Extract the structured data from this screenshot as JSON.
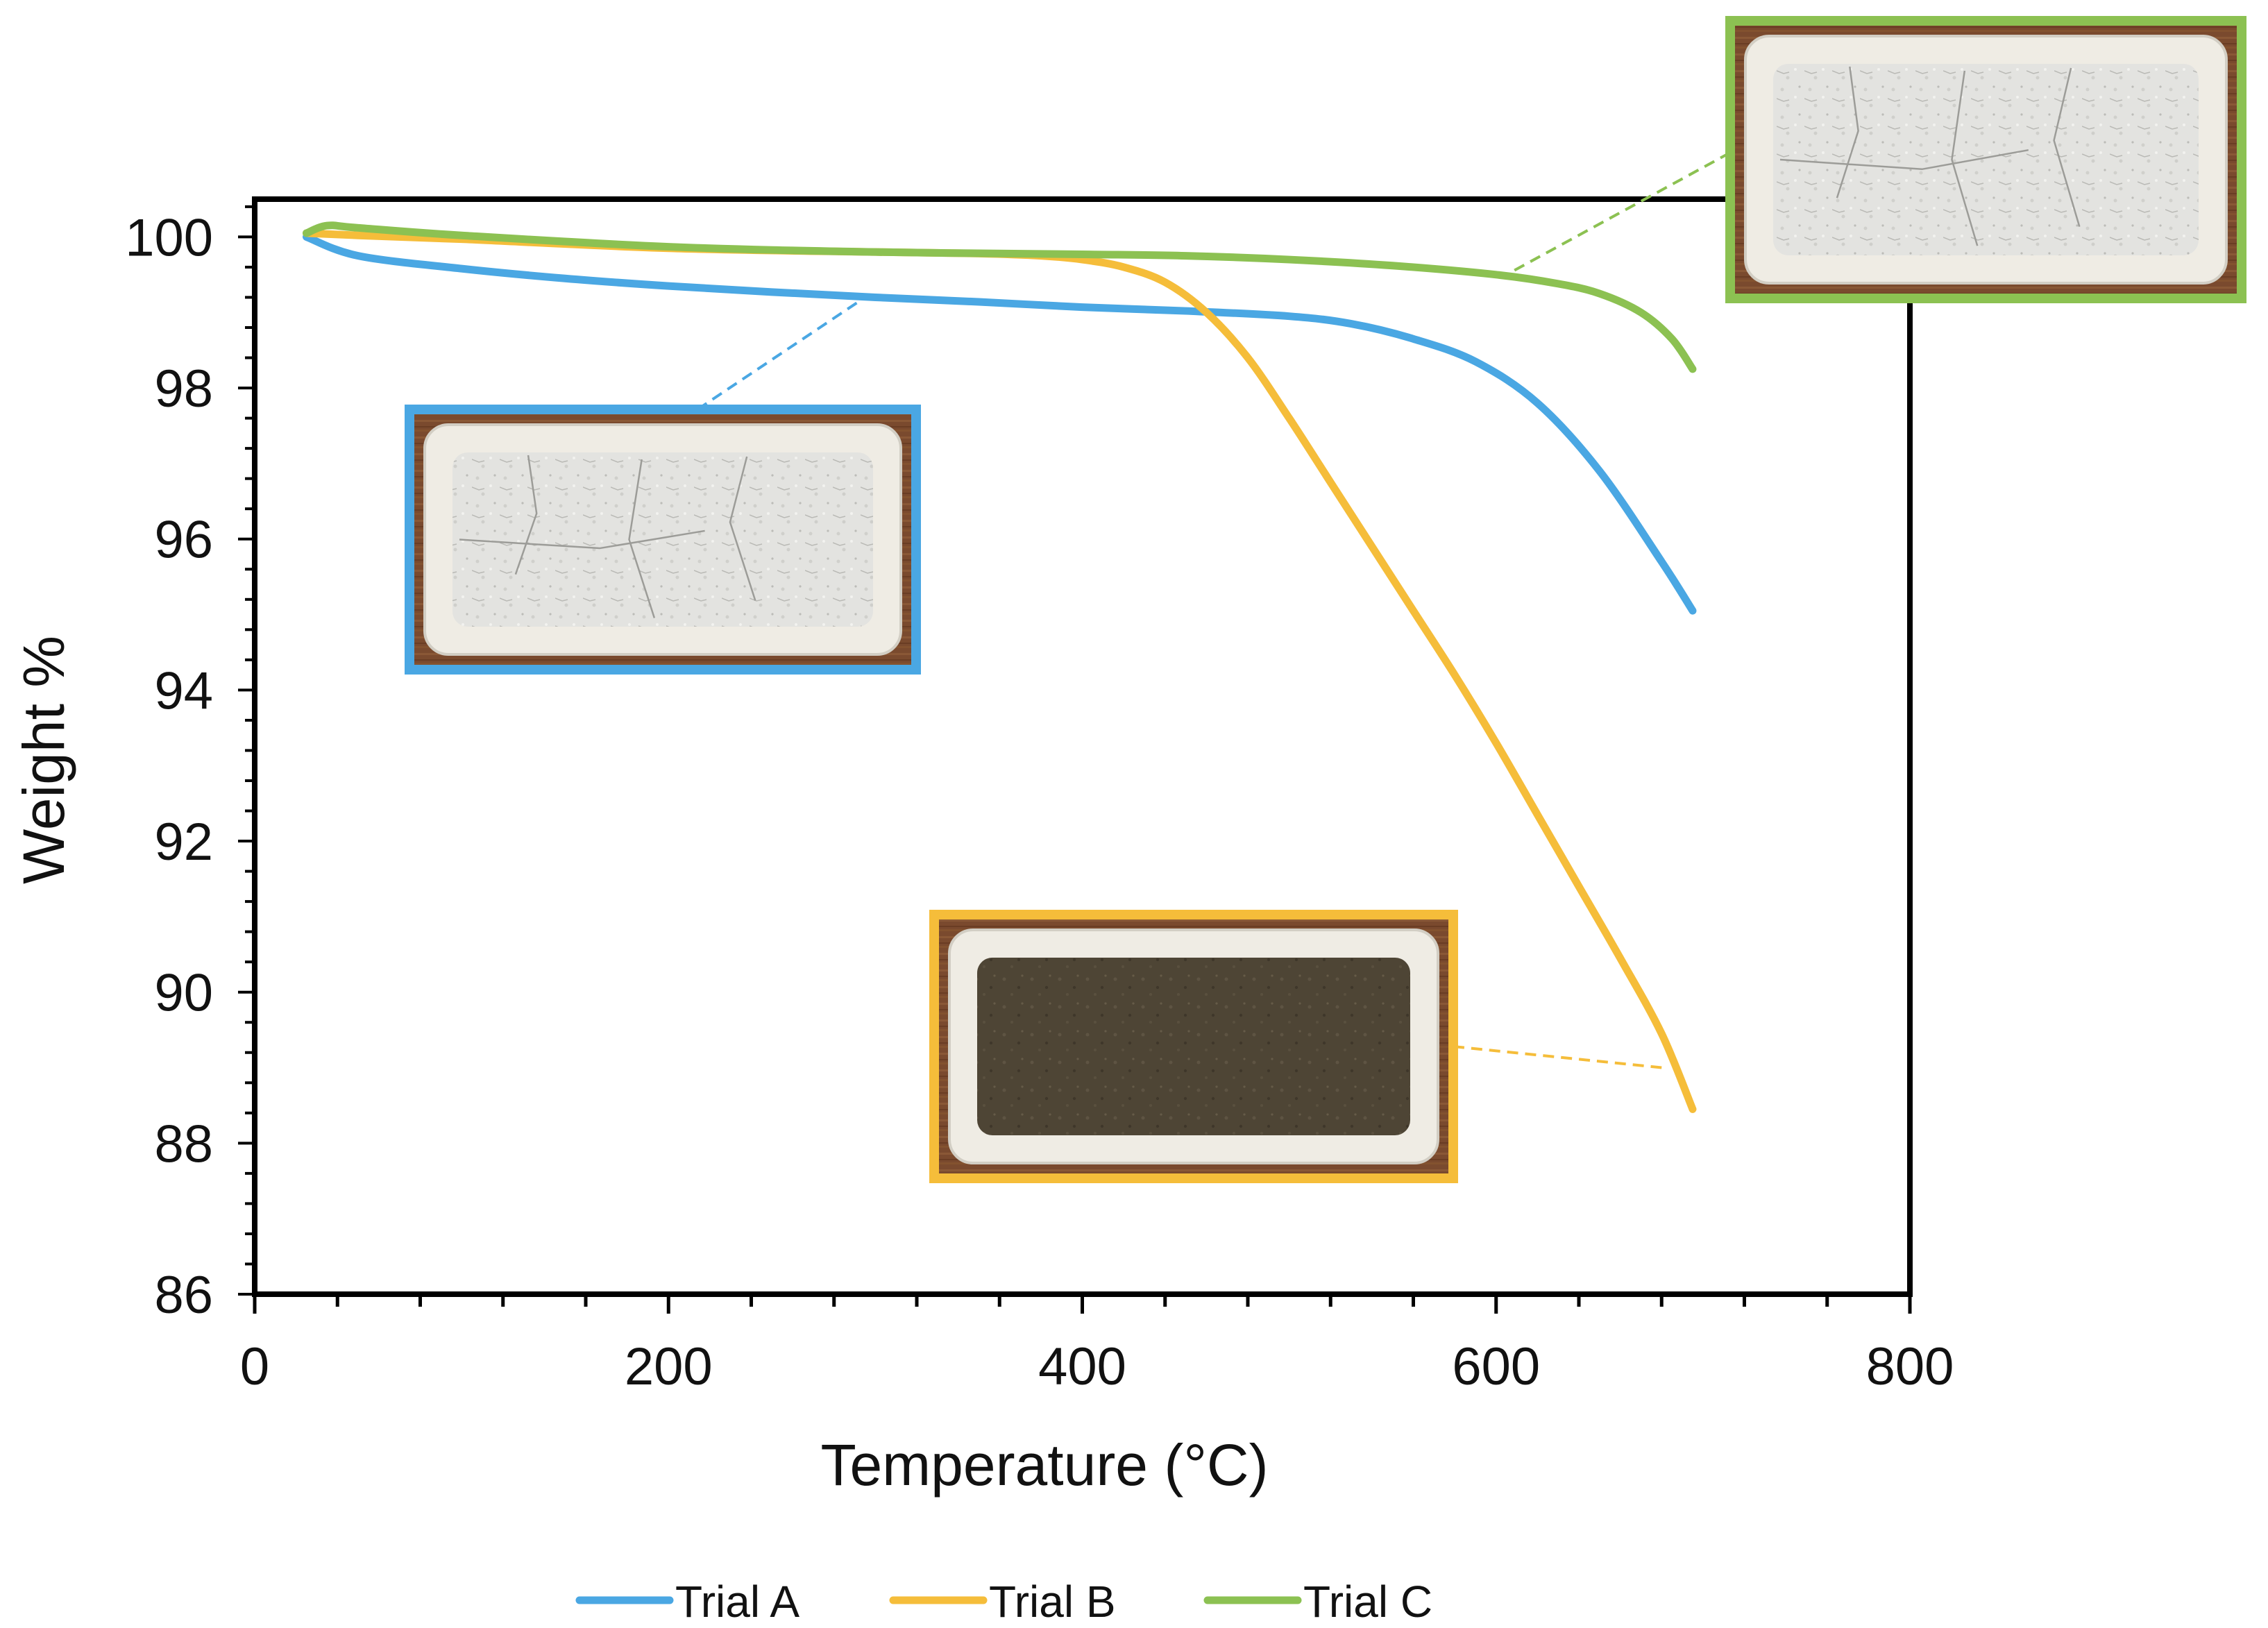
{
  "chart_data": {
    "type": "line",
    "xlabel": "Temperature (°C)",
    "ylabel": "Weight %",
    "xlim": [
      0,
      800
    ],
    "ylim": [
      86,
      100.5
    ],
    "x_ticks": [
      0,
      200,
      400,
      600,
      800
    ],
    "y_ticks": [
      86,
      88,
      90,
      92,
      94,
      96,
      98,
      100
    ],
    "x_tick_labels": [
      "0",
      "200",
      "400",
      "600",
      "800"
    ],
    "y_tick_labels": [
      "86",
      "88",
      "90",
      "92",
      "94",
      "96",
      "98",
      "100"
    ],
    "grid": false,
    "legend_position": "bottom",
    "series": [
      {
        "name": "Trial A",
        "color": "#4aa7e3",
        "x": [
          25,
          50,
          100,
          150,
          200,
          250,
          300,
          350,
          400,
          450,
          500,
          530,
          560,
          590,
          620,
          650,
          680,
          695
        ],
        "y": [
          100.0,
          99.75,
          99.58,
          99.45,
          99.35,
          99.27,
          99.2,
          99.14,
          99.07,
          99.02,
          98.95,
          98.85,
          98.65,
          98.35,
          97.8,
          96.9,
          95.7,
          95.05
        ]
      },
      {
        "name": "Trial B",
        "color": "#f5bd3a",
        "x": [
          25,
          50,
          100,
          200,
          300,
          350,
          380,
          400,
          420,
          440,
          460,
          480,
          500,
          520,
          540,
          560,
          580,
          600,
          620,
          640,
          660,
          680,
          695
        ],
        "y": [
          100.05,
          100.02,
          99.97,
          99.85,
          99.8,
          99.78,
          99.75,
          99.7,
          99.6,
          99.4,
          99.0,
          98.4,
          97.6,
          96.75,
          95.9,
          95.05,
          94.2,
          93.3,
          92.35,
          91.4,
          90.45,
          89.45,
          88.45
        ]
      },
      {
        "name": "Trial C",
        "color": "#8cc152",
        "x": [
          25,
          35,
          50,
          100,
          200,
          300,
          400,
          450,
          500,
          550,
          600,
          630,
          650,
          670,
          685,
          695
        ],
        "y": [
          100.05,
          100.15,
          100.12,
          100.02,
          99.87,
          99.8,
          99.77,
          99.75,
          99.7,
          99.62,
          99.5,
          99.38,
          99.25,
          99.0,
          98.65,
          98.25
        ]
      }
    ],
    "insets": [
      {
        "series": "Trial A",
        "frame_color": "#4aa7e3",
        "powder": "light-grey",
        "pointer_data": [
          295,
          99.2
        ]
      },
      {
        "series": "Trial B",
        "frame_color": "#f5bd3a",
        "powder": "dark-brown",
        "pointer_data": [
          680,
          89.0
        ]
      },
      {
        "series": "Trial C",
        "frame_color": "#8cc152",
        "powder": "light-grey",
        "pointer_data": [
          605,
          99.5
        ]
      }
    ]
  }
}
